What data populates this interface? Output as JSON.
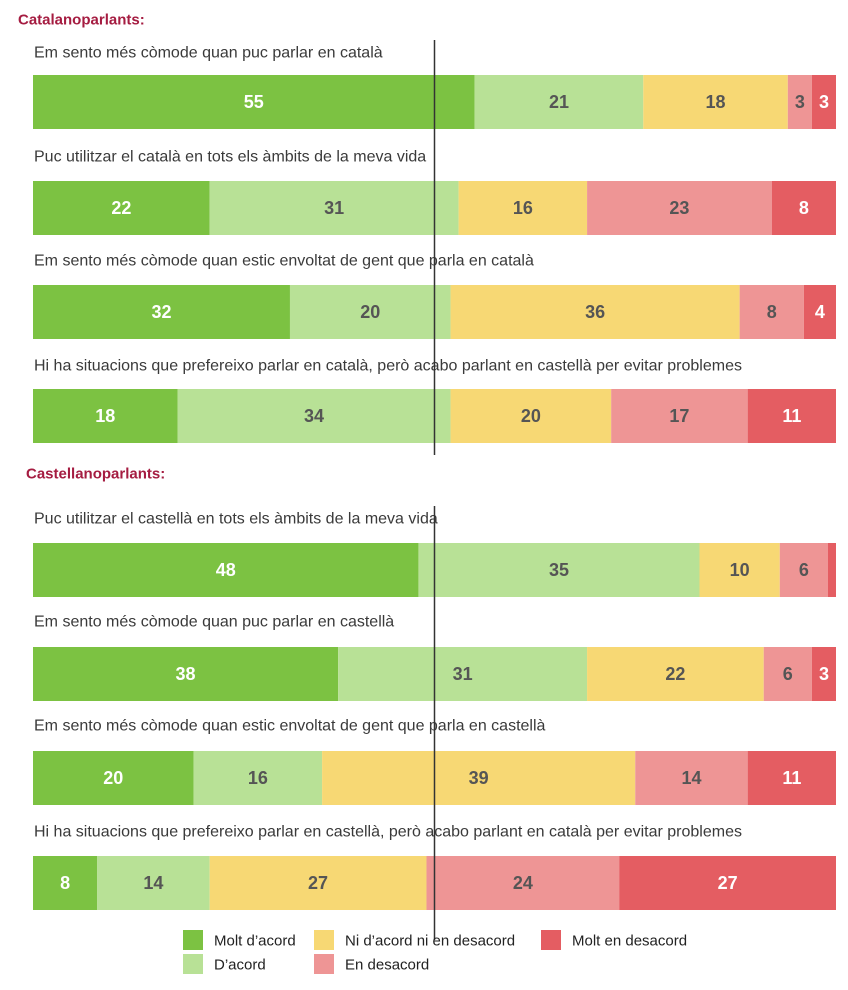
{
  "chart_data": {
    "type": "bar",
    "orientation": "horizontal-stacked-100",
    "colors": {
      "molt_acord": "#7cc242",
      "acord": "#b8e196",
      "neutral": "#f7d874",
      "desacord": "#ee9595",
      "molt_desacord": "#e45d62",
      "title": "#a51c41",
      "text_dark": "#555555",
      "text_light": "#ffffff"
    },
    "legend": [
      {
        "name": "Molt d’acord",
        "key": "molt_acord"
      },
      {
        "name": "Ni d’acord ni en desacord",
        "key": "neutral"
      },
      {
        "name": "Molt en desacord",
        "key": "molt_desacord"
      },
      {
        "name": "D’acord",
        "key": "acord"
      },
      {
        "name": "En desacord",
        "key": "desacord"
      }
    ],
    "groups": [
      {
        "title": "Catalanoparlants:",
        "items": [
          {
            "label": "Em sento més còmode quan puc parlar en català",
            "values": [
              55,
              21,
              18,
              3,
              3
            ]
          },
          {
            "label": "Puc utilitzar el català en tots els àmbits de la meva vida",
            "values": [
              22,
              31,
              16,
              23,
              8
            ]
          },
          {
            "label": "Em sento més còmode quan estic envoltat de gent que parla en català",
            "values": [
              32,
              20,
              36,
              8,
              4
            ]
          },
          {
            "label": "Hi ha situacions que prefereixo parlar en català, però acabo parlant en castellà per evitar problemes",
            "values": [
              18,
              34,
              20,
              17,
              11
            ]
          }
        ]
      },
      {
        "title": "Castellanoparlants:",
        "items": [
          {
            "label": "Puc utilitzar el castellà en tots els àmbits de la meva vida",
            "values": [
              48,
              35,
              10,
              6,
              1
            ]
          },
          {
            "label": "Em sento més còmode quan puc parlar en castellà",
            "values": [
              38,
              31,
              22,
              6,
              3
            ]
          },
          {
            "label": "Em sento més còmode quan estic envoltat de gent que parla en castellà",
            "values": [
              20,
              16,
              39,
              14,
              11
            ]
          },
          {
            "label": "Hi ha situacions que prefereixo parlar en castellà, però acabo parlant en català per evitar problemes",
            "values": [
              8,
              14,
              27,
              24,
              27
            ]
          }
        ]
      }
    ]
  }
}
